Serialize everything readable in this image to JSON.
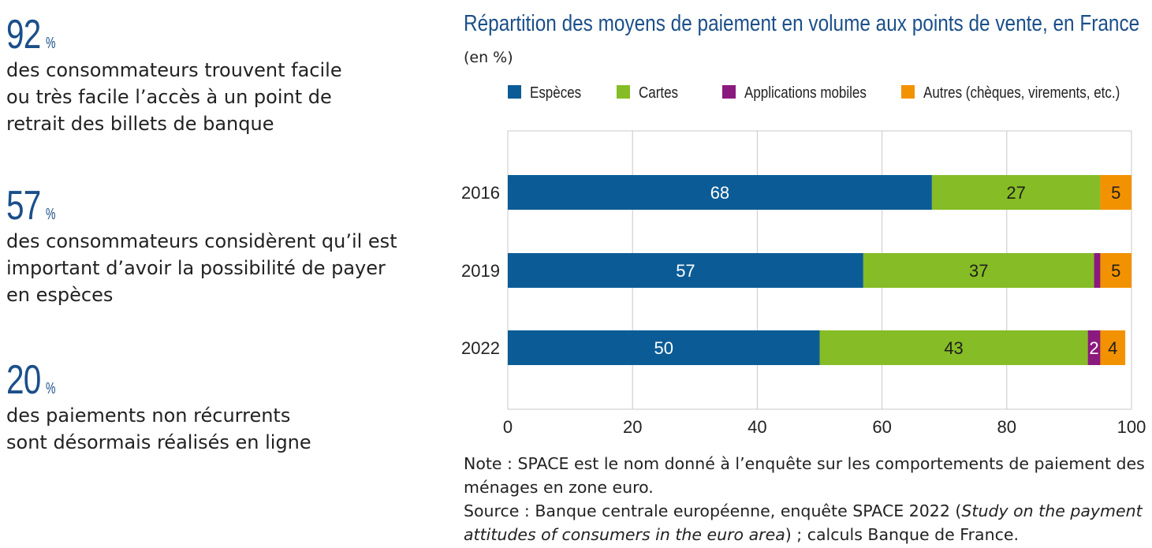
{
  "stats": [
    {
      "value": "92",
      "unit": "%",
      "text": "des consommateurs trouvent facile\nou très facile l’accès à un point de\nretrait des billets de banque"
    },
    {
      "value": "57",
      "unit": "%",
      "text": "des consommateurs considèrent qu’il est\nimportant d’avoir la possibilité de payer\nen espèces"
    },
    {
      "value": "20",
      "unit": "%",
      "text": "des paiements non récurrents\nsont désormais réalisés en ligne"
    }
  ],
  "chart_data": {
    "type": "bar",
    "orientation": "horizontal",
    "stacked": true,
    "title": "Répartition des moyens de paiement en volume aux points de vente, en France",
    "unit": "(en %)",
    "categories": [
      "2016",
      "2019",
      "2022"
    ],
    "series": [
      {
        "name": "Espèces",
        "color": "#0b5c96",
        "values": [
          68,
          57,
          50
        ]
      },
      {
        "name": "Cartes",
        "color": "#86bc25",
        "values": [
          27,
          37,
          43
        ]
      },
      {
        "name": "Applications mobiles",
        "color": "#8a1a7e",
        "values": [
          0,
          1,
          2
        ]
      },
      {
        "name": "Autres (chèques, virements, etc.)",
        "color": "#f39200",
        "values": [
          5,
          5,
          4
        ]
      }
    ],
    "data_labels": [
      [
        "68",
        "27",
        "",
        "5"
      ],
      [
        "57",
        "37",
        "",
        "5"
      ],
      [
        "50",
        "43",
        "2",
        "4"
      ]
    ],
    "xlim": [
      0,
      100
    ],
    "xticks": [
      0,
      20,
      40,
      60,
      80,
      100
    ],
    "grid": true,
    "legend": "top"
  },
  "notes": {
    "note": "Note : SPACE est le nom donné à l’enquête sur les comportements de paiement des ménages en zone euro.",
    "source_prefix": "Source : Banque centrale européenne, enquête SPACE 2022 (",
    "source_italic": "Study on the payment attitudes of consumers in the euro area",
    "source_suffix": ") ; calculs Banque de France."
  }
}
